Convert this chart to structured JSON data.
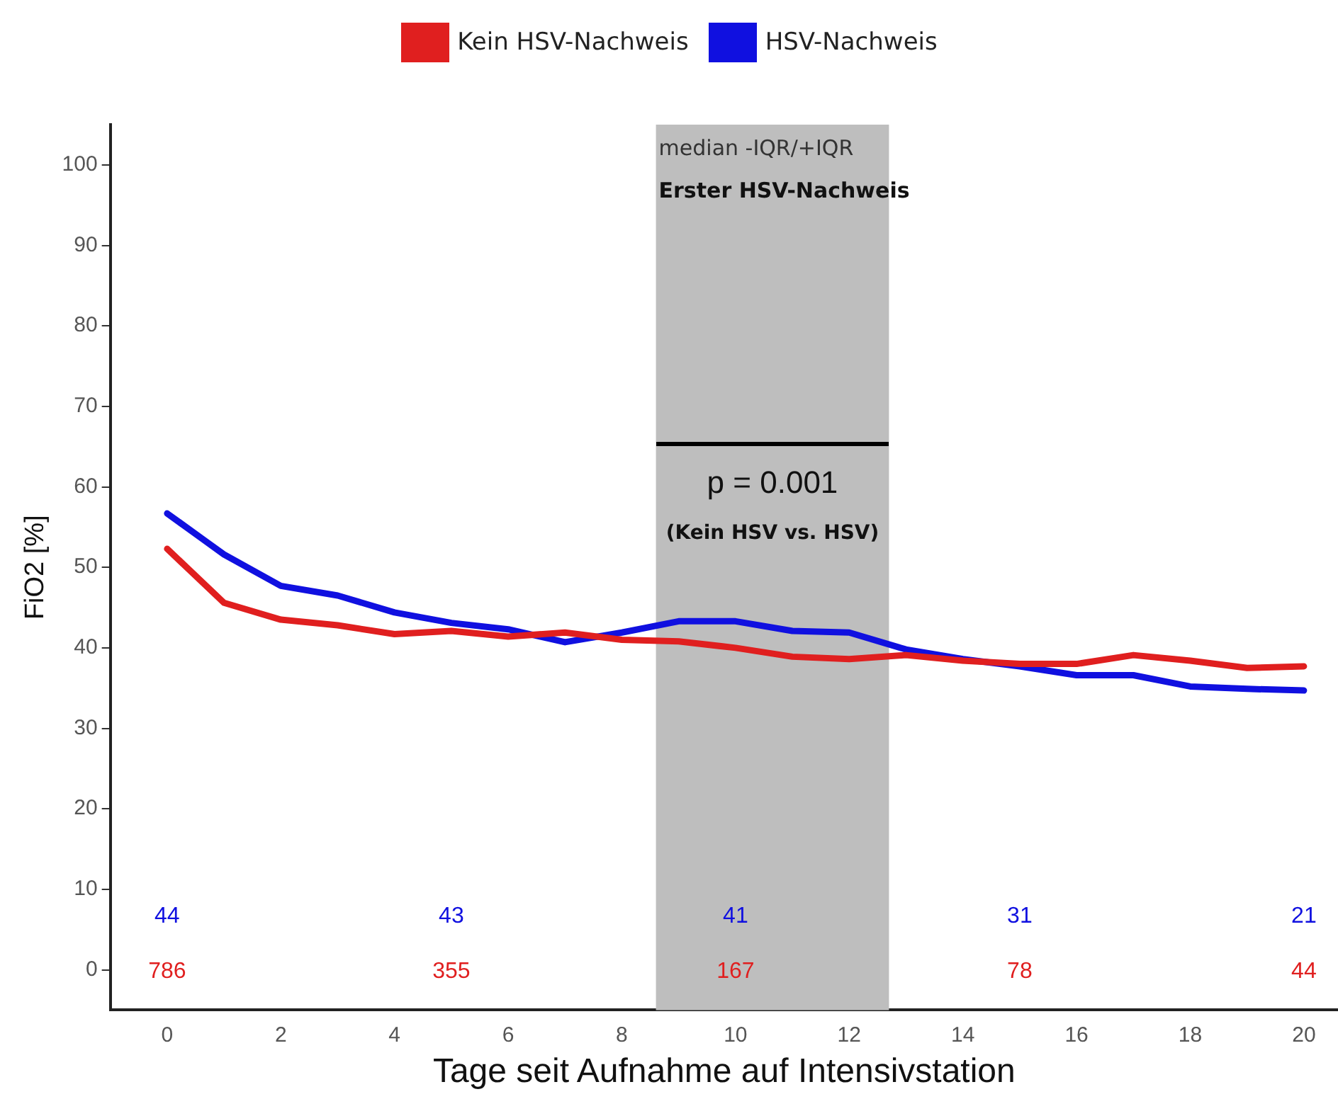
{
  "chart_data": {
    "type": "line",
    "xlabel": "Tage seit Aufnahme auf Intensivstation",
    "ylabel": "FiO2 [%]",
    "x": [
      0,
      1,
      2,
      3,
      4,
      5,
      6,
      7,
      8,
      9,
      10,
      11,
      12,
      13,
      14,
      15,
      16,
      17,
      18,
      19,
      20
    ],
    "series": [
      {
        "name": "Kein HSV-Nachweis",
        "color": "#e01f1f",
        "values": [
          52.3,
          45.6,
          43.5,
          42.8,
          41.7,
          42.1,
          41.4,
          41.9,
          41.0,
          40.8,
          40.0,
          38.9,
          38.6,
          39.1,
          38.4,
          38.0,
          38.0,
          39.1,
          38.4,
          37.5,
          37.7
        ]
      },
      {
        "name": "HSV-Nachweis",
        "color": "#1010e0",
        "values": [
          56.7,
          51.6,
          47.7,
          46.5,
          44.4,
          43.1,
          42.3,
          40.7,
          41.9,
          43.3,
          43.3,
          42.1,
          41.9,
          39.8,
          38.6,
          37.7,
          36.6,
          36.6,
          35.2,
          34.9,
          34.7
        ]
      }
    ],
    "xlim": [
      -1,
      20.6
    ],
    "xticks": [
      0,
      2,
      4,
      6,
      8,
      10,
      12,
      14,
      16,
      18,
      20
    ],
    "ylim": [
      -5,
      105
    ],
    "yticks": [
      0,
      10,
      20,
      30,
      40,
      50,
      60,
      70,
      80,
      90,
      100
    ],
    "bands": [
      {
        "axis": "x",
        "from": 8.6,
        "to": 12.7,
        "label": "median -IQR/+IQR",
        "color": "#bebebe"
      }
    ],
    "annotations": [
      "Erster HSV-Nachweis",
      "p = 0.001",
      "(Kein HSV vs. HSV)",
      "44",
      "43",
      "41",
      "31",
      "21",
      "786",
      "355",
      "167",
      "78",
      "44"
    ],
    "grid": false,
    "legend": "top",
    "line_style": "solid"
  }
}
